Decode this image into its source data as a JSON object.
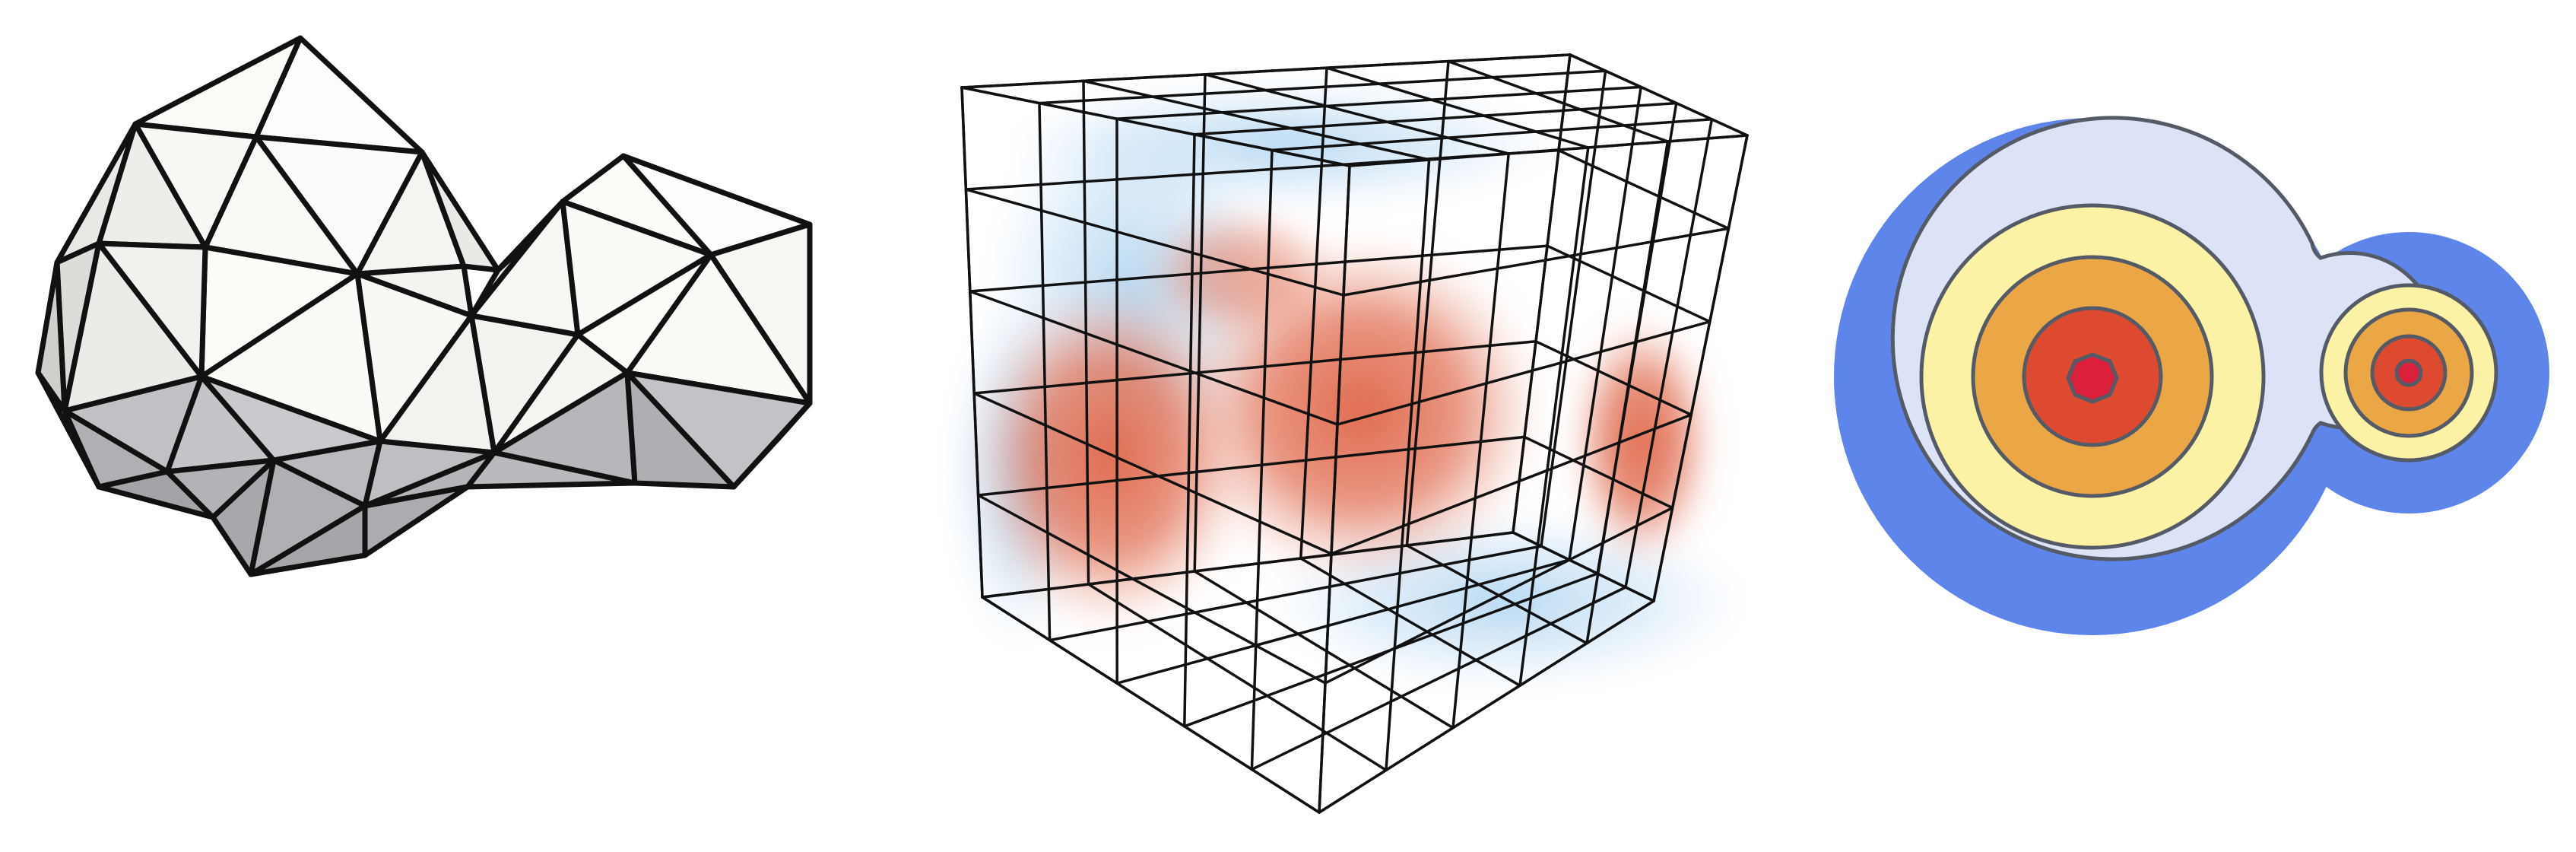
{
  "figure": {
    "panels": [
      {
        "id": "mesh",
        "kind": "triangulated-surface-mesh"
      },
      {
        "id": "volume-grid",
        "kind": "voxel-grid-with-volume-field"
      },
      {
        "id": "distance-contours",
        "kind": "concentric-contour-field"
      }
    ]
  },
  "colors": {
    "edge": "#111111",
    "face_light": "#fbfbf8",
    "face_shade": "#e7e7e4",
    "face_dark": "#a7a9ae",
    "field_red": "#dc5a3c",
    "field_blue": "#9ccbee",
    "contour_line": "#555b66",
    "contour_bands": [
      "#5e86ea",
      "#dde3f7",
      "#fbf2a5",
      "#eba745",
      "#dd4a2f",
      "#dc1f3a"
    ]
  }
}
